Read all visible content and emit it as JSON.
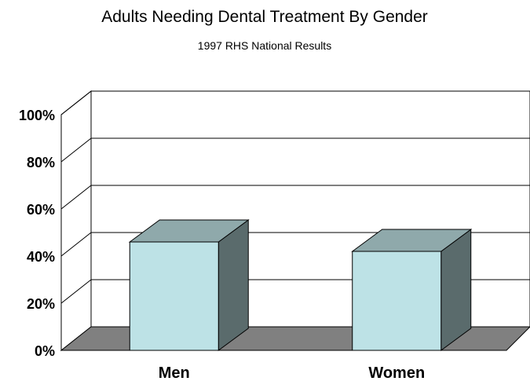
{
  "chart_data": {
    "type": "bar",
    "title": "Adults Needing Dental Treatment By Gender",
    "subtitle": "1997 RHS National Results",
    "categories": [
      "Men",
      "Women"
    ],
    "values": [
      46,
      42
    ],
    "value_unit": "%",
    "ylim": [
      0,
      100
    ],
    "yticks": [
      0,
      20,
      40,
      60,
      80,
      100
    ],
    "ytick_labels": [
      "0%",
      "20%",
      "40%",
      "60%",
      "80%",
      "100%"
    ],
    "grid": true,
    "style": "3d",
    "colors": {
      "bar_front": "#bde2e6",
      "bar_top": "#8fa9ab",
      "bar_side": "#5a6b6c",
      "floor": "#808080",
      "wall": "#ffffff",
      "grid": "#000000"
    }
  }
}
